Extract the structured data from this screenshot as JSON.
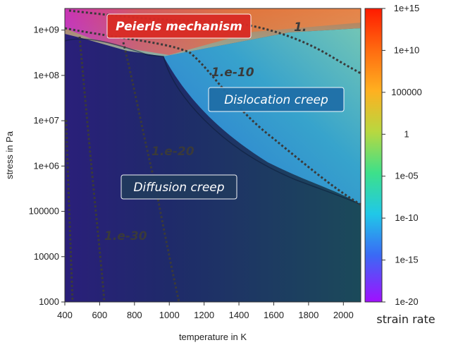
{
  "chart_data": {
    "type": "heatmap",
    "title": "",
    "xlabel": "temperature in K",
    "ylabel": "stress in Pa",
    "xlim": [
      400,
      2100
    ],
    "ylim": [
      1000,
      3000000000.0
    ],
    "y_scale": "log",
    "x_ticks": [
      "400",
      "600",
      "800",
      "1000",
      "1200",
      "1400",
      "1600",
      "1800",
      "2000"
    ],
    "y_ticks": [
      "1e+09",
      "1e+08",
      "1e+07",
      "1e+06",
      "100000",
      "10000",
      "1000"
    ],
    "colorbar": {
      "label": "strain rate",
      "scale": "log",
      "range": [
        1e-20,
        1000000000000000.0
      ],
      "ticks": [
        "1e+15",
        "1e+10",
        "100000",
        "1",
        "1e-05",
        "1e-10",
        "1e-15",
        "1e-20"
      ],
      "colors": [
        "#ff1a00",
        "#ff9a1a",
        "#c8d040",
        "#3de08a",
        "#20c8e8",
        "#2a7df5",
        "#4a28e0",
        "#8a10ff"
      ]
    },
    "regions": [
      {
        "label": "Peierls mechanism",
        "color": "#e8342a"
      },
      {
        "label": "Dislocation creep",
        "color": "#1f6fa8"
      },
      {
        "label": "Diffusion creep",
        "color": "#213a5e"
      }
    ],
    "contour_labels": [
      "1.",
      "1.e-10",
      "1.e-20",
      "1.e-30"
    ],
    "grid": false,
    "legend": "colorbar-right"
  }
}
